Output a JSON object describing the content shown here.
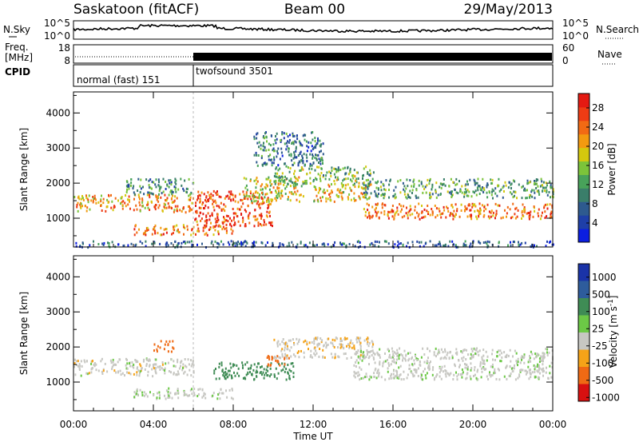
{
  "header": {
    "title": "Saskatoon (fitACF)",
    "beam": "Beam 00",
    "date": "29/May/2013"
  },
  "noise_panel": {
    "left_label": "N.Sky",
    "left_ticks": [
      "10^5",
      "10^0"
    ],
    "right_ticks": [
      "10^5",
      "10^0"
    ],
    "right_label": "N.Search"
  },
  "freq_panel": {
    "left_label_1": "Freq.",
    "left_label_2": "[MHz]",
    "left_ticks": [
      "18",
      "8"
    ],
    "right_ticks": [
      "60",
      "0"
    ],
    "right_label": "Nave"
  },
  "cpid_panel": {
    "label": "CPID",
    "modes": [
      {
        "name": "normal (fast) 151",
        "start_hour": 0
      },
      {
        "name": "twofsound 3501",
        "start_hour": 6
      }
    ]
  },
  "chart_data": [
    {
      "type": "heatmap",
      "quantity": "Power",
      "colorbar_label": "Power [dB]",
      "colorbar_ticks": [
        "4",
        "8",
        "12",
        "16",
        "20",
        "24",
        "28"
      ],
      "colorbar_range": [
        0,
        31
      ],
      "xlabel": "Time UT",
      "ylabel": "Slant Range [km]",
      "xlim": [
        0,
        24
      ],
      "ylim": [
        180,
        4600
      ],
      "x_ticks": [
        "00:00",
        "04:00",
        "08:00",
        "12:00",
        "16:00",
        "20:00",
        "00:00"
      ],
      "x_tick_hours": [
        0,
        4,
        8,
        12,
        16,
        20,
        24
      ],
      "y_ticks": [
        1000,
        2000,
        3000,
        4000
      ],
      "colormap": [
        "#0b1ee0",
        "#1f3fa8",
        "#2e5a8f",
        "#3a7e6a",
        "#48a25a",
        "#7cc43a",
        "#d4c80e",
        "#f39a10",
        "#f26a14",
        "#ee3c14",
        "#e41a12"
      ],
      "bands": [
        {
          "t0": 0.0,
          "t1": 6.0,
          "r0": 1200,
          "r1": 1700,
          "p": 22
        },
        {
          "t0": 2.5,
          "t1": 6.0,
          "r0": 1700,
          "r1": 2150,
          "p": 10
        },
        {
          "t0": 3.0,
          "t1": 8.0,
          "r0": 550,
          "r1": 850,
          "p": 24
        },
        {
          "t0": 6.0,
          "t1": 10.0,
          "r0": 800,
          "r1": 1800,
          "p": 27
        },
        {
          "t0": 8.5,
          "t1": 11.5,
          "r0": 1500,
          "r1": 2200,
          "p": 18
        },
        {
          "t0": 10.0,
          "t1": 15.0,
          "r0": 2000,
          "r1": 2500,
          "p": 14
        },
        {
          "t0": 12.0,
          "t1": 15.0,
          "r0": 1500,
          "r1": 2000,
          "p": 20
        },
        {
          "t0": 14.5,
          "t1": 24.0,
          "r0": 1600,
          "r1": 2150,
          "p": 12
        },
        {
          "t0": 14.5,
          "t1": 24.0,
          "r0": 1000,
          "r1": 1450,
          "p": 25
        },
        {
          "t0": 9.0,
          "t1": 12.5,
          "r0": 2500,
          "r1": 3500,
          "p": 8
        },
        {
          "t0": 0.0,
          "t1": 24.0,
          "r0": 200,
          "r1": 380,
          "p": 6
        }
      ]
    },
    {
      "type": "heatmap",
      "quantity": "Velocity",
      "colorbar_label": "Velocity [m s^-1]",
      "colorbar_ticks": [
        "1000",
        "500",
        "100",
        "25",
        "-25",
        "-100",
        "-500",
        "-1000"
      ],
      "xlabel": "Time UT",
      "ylabel": "Slant Range [km]",
      "xlim": [
        0,
        24
      ],
      "ylim": [
        180,
        4600
      ],
      "x_ticks": [
        "00:00",
        "04:00",
        "08:00",
        "12:00",
        "16:00",
        "20:00",
        "00:00"
      ],
      "x_tick_hours": [
        0,
        4,
        8,
        12,
        16,
        20,
        24
      ],
      "y_ticks": [
        1000,
        2000,
        3000,
        4000
      ],
      "colormap": [
        "#1a33a8",
        "#2e5c9c",
        "#3f8c55",
        "#6cc846",
        "#c7c7c2",
        "#c7c7c2",
        "#f5a318",
        "#ef6a14",
        "#e63414",
        "#d81010"
      ],
      "bands": [
        {
          "t0": 0.0,
          "t1": 6.0,
          "r0": 1200,
          "r1": 1700,
          "v": 0
        },
        {
          "t0": 3.0,
          "t1": 8.0,
          "r0": 550,
          "r1": 850,
          "v": 10
        },
        {
          "t0": 7.0,
          "t1": 11.0,
          "r0": 1100,
          "r1": 1600,
          "v": 150
        },
        {
          "t0": 4.0,
          "t1": 5.0,
          "r0": 1900,
          "r1": 2200,
          "v": -200
        },
        {
          "t0": 9.5,
          "t1": 10.8,
          "r0": 1500,
          "r1": 1800,
          "v": -150
        },
        {
          "t0": 10.0,
          "t1": 15.0,
          "r0": 1700,
          "r1": 2300,
          "v": -10
        },
        {
          "t0": 14.0,
          "t1": 24.0,
          "r0": 1100,
          "r1": 2000,
          "v": 5
        }
      ]
    }
  ]
}
